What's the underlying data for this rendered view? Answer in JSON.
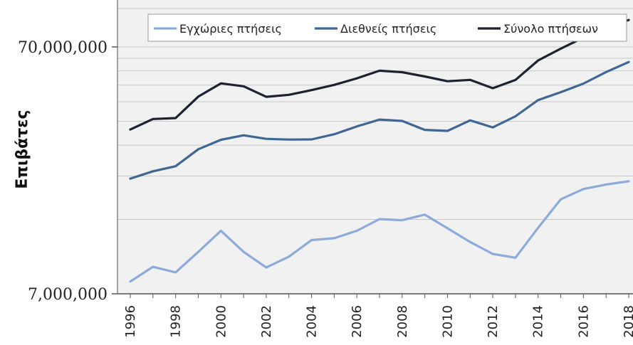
{
  "chart_data": {
    "type": "line",
    "title": "",
    "xlabel": "",
    "ylabel": "Επιβάτες",
    "yscale": "log",
    "ylim": [
      7000000,
      140000000
    ],
    "y_tick_labels": [
      "70,000,000",
      "7,000,000"
    ],
    "y_ticks": [
      70000000,
      7000000
    ],
    "x": [
      1996,
      1997,
      1998,
      1999,
      2000,
      2001,
      2002,
      2003,
      2004,
      2005,
      2006,
      2007,
      2008,
      2009,
      2010,
      2011,
      2012,
      2013,
      2014,
      2015,
      2016,
      2017,
      2018
    ],
    "x_tick_labels": [
      "1996",
      "1998",
      "2000",
      "2002",
      "2004",
      "2006",
      "2008",
      "2010",
      "2012",
      "2014",
      "2016",
      "2018"
    ],
    "legend_position": "top",
    "grid": true,
    "series": [
      {
        "name": "Εγχώριες πτήσεις",
        "color": "#8eaadb",
        "values": [
          7850000,
          9000000,
          8550000,
          10350000,
          12600000,
          10350000,
          8950000,
          9900000,
          11550000,
          11750000,
          12600000,
          14050000,
          13900000,
          14650000,
          12900000,
          11350000,
          10150000,
          9800000,
          12950000,
          16900000,
          18600000,
          19400000,
          20000000
        ]
      },
      {
        "name": "Διεθνείς πτήσεις",
        "color": "#3f6694",
        "values": [
          20500000,
          21950000,
          23000000,
          26950000,
          29450000,
          30700000,
          29700000,
          29500000,
          29550000,
          31000000,
          33350000,
          35550000,
          35100000,
          32300000,
          32000000,
          35300000,
          33050000,
          36650000,
          42650000,
          45900000,
          49750000,
          55400000,
          60800000
        ]
      },
      {
        "name": "Σύνολο πτήσεων",
        "color": "#1b2230",
        "values": [
          32400000,
          35750000,
          36050000,
          44050000,
          49850000,
          48500000,
          43950000,
          44800000,
          46800000,
          49150000,
          52250000,
          56100000,
          55300000,
          53150000,
          50850000,
          51500000,
          47650000,
          51450000,
          61700000,
          68900000,
          76400000,
          84000000,
          90000000
        ]
      }
    ]
  }
}
